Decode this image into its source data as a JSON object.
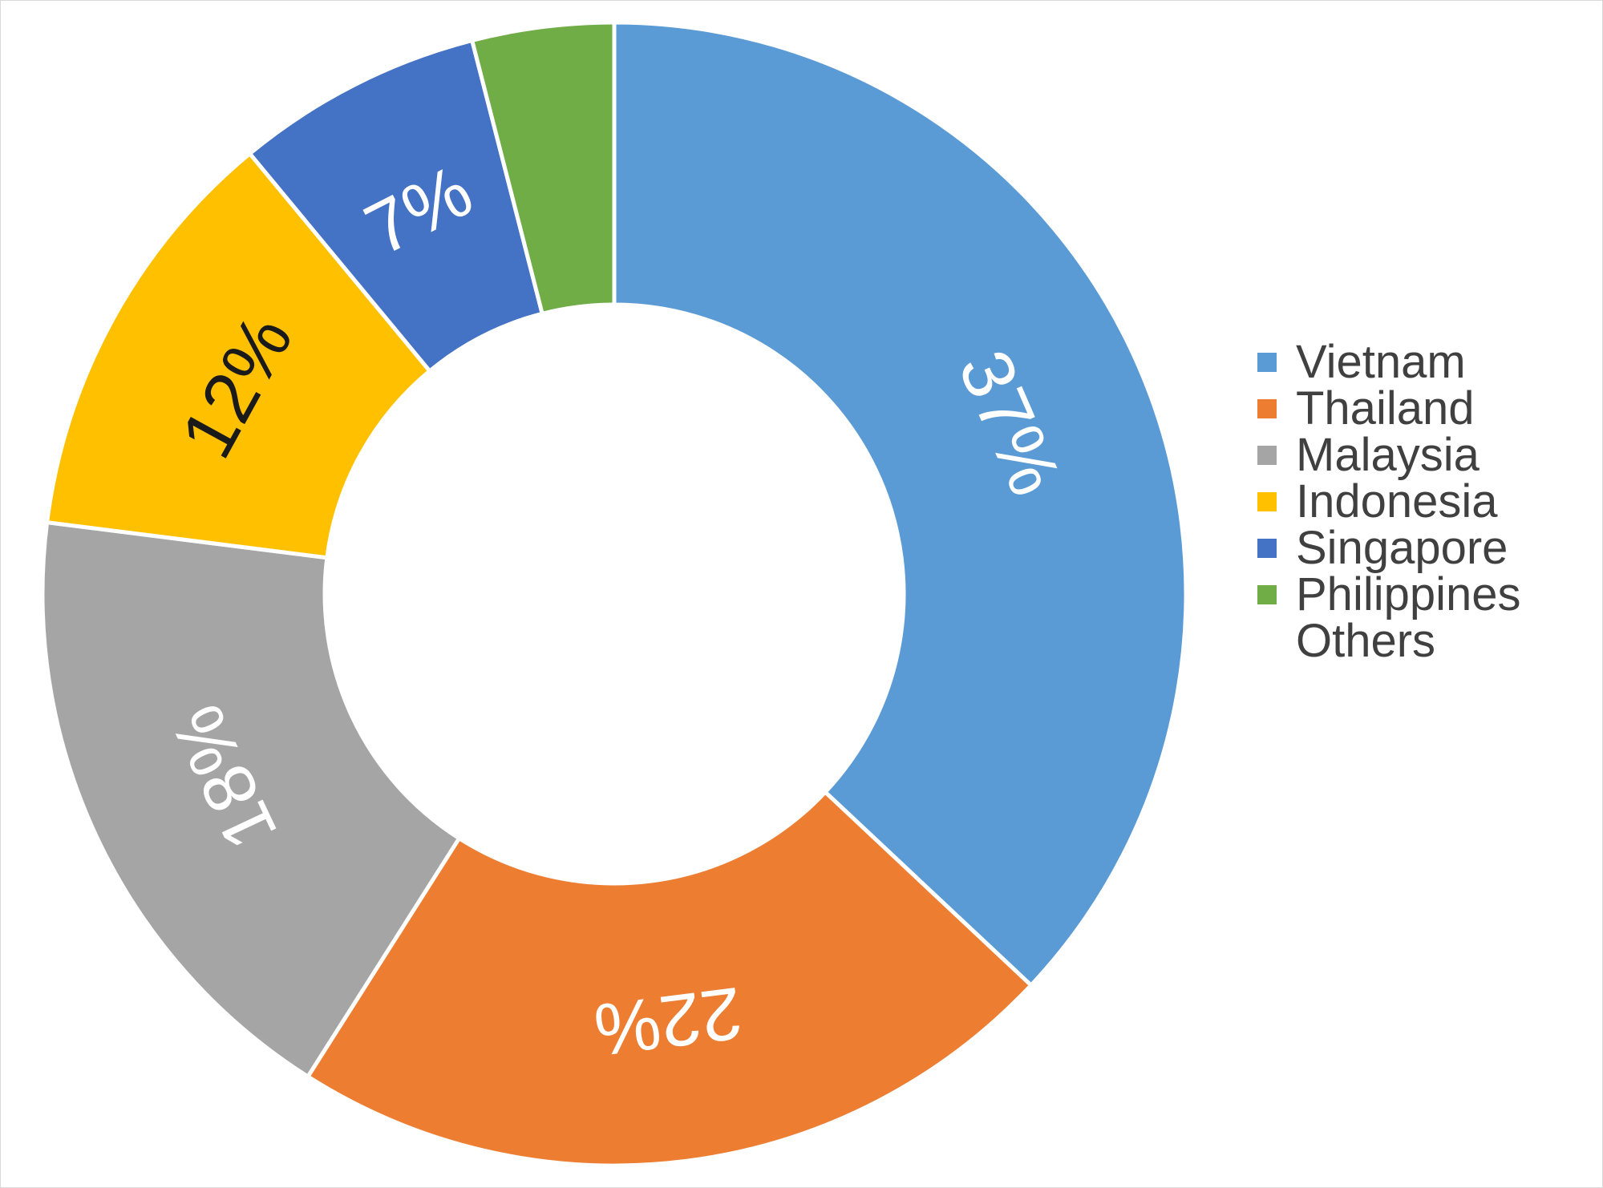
{
  "chart_data": {
    "type": "pie",
    "variant": "donut",
    "title": "",
    "categories": [
      "Vietnam",
      "Thailand",
      "Malaysia",
      "Indonesia",
      "Singapore",
      "Philippines",
      "Others"
    ],
    "values": [
      37,
      22,
      18,
      12,
      7,
      4,
      0
    ],
    "labels": [
      "37%",
      "22%",
      "18%",
      "12%",
      "7%",
      "",
      ""
    ],
    "label_colors": [
      "#ffffff",
      "#ffffff",
      "#ffffff",
      "#1a1a1a",
      "#ffffff",
      "#ffffff",
      "#ffffff"
    ],
    "colors": [
      "#5B9BD5",
      "#ED7D31",
      "#A5A5A5",
      "#FFC000",
      "#4472C4",
      "#70AD47",
      "#ffffff"
    ],
    "legend_position": "right",
    "legend_entries": [
      {
        "label": "Vietnam",
        "color": "#5B9BD5",
        "swatch": true
      },
      {
        "label": "Thailand",
        "color": "#ED7D31",
        "swatch": true
      },
      {
        "label": "Malaysia",
        "color": "#A5A5A5",
        "swatch": true
      },
      {
        "label": "Indonesia",
        "color": "#FFC000",
        "swatch": true
      },
      {
        "label": "Singapore",
        "color": "#4472C4",
        "swatch": true
      },
      {
        "label": "Philippines",
        "color": "#70AD47",
        "swatch": true
      },
      {
        "label": "Others",
        "color": "#ffffff",
        "swatch": false
      }
    ]
  }
}
